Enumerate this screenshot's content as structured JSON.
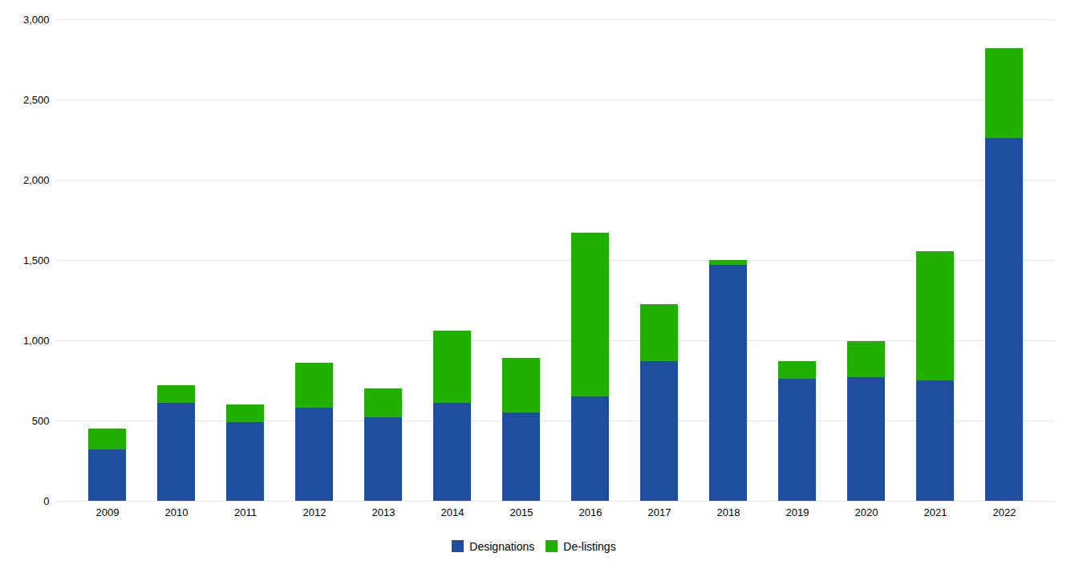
{
  "chart_data": {
    "type": "bar",
    "stacked": true,
    "categories": [
      "2009",
      "2010",
      "2011",
      "2012",
      "2013",
      "2014",
      "2015",
      "2016",
      "2017",
      "2018",
      "2019",
      "2020",
      "2021",
      "2022"
    ],
    "series": [
      {
        "name": "Designations",
        "color": "#1F4E9E",
        "values": [
          320,
          610,
          490,
          580,
          520,
          610,
          550,
          650,
          870,
          1470,
          760,
          770,
          750,
          2260
        ]
      },
      {
        "name": "De-listings",
        "color": "#22B000",
        "values": [
          130,
          110,
          110,
          280,
          180,
          450,
          340,
          1020,
          355,
          30,
          110,
          225,
          805,
          560
        ]
      }
    ],
    "ylim": [
      0,
      3000
    ],
    "yticks": [
      0,
      500,
      {
        "value": 1000,
        "label": "1,000"
      },
      {
        "value": 1500,
        "label": "1,500"
      },
      {
        "value": 2000,
        "label": "2,000"
      },
      {
        "value": 2500,
        "label": "2,500"
      },
      {
        "value": 3000,
        "label": "3,000"
      }
    ],
    "grid": true,
    "legend": "bottom"
  }
}
